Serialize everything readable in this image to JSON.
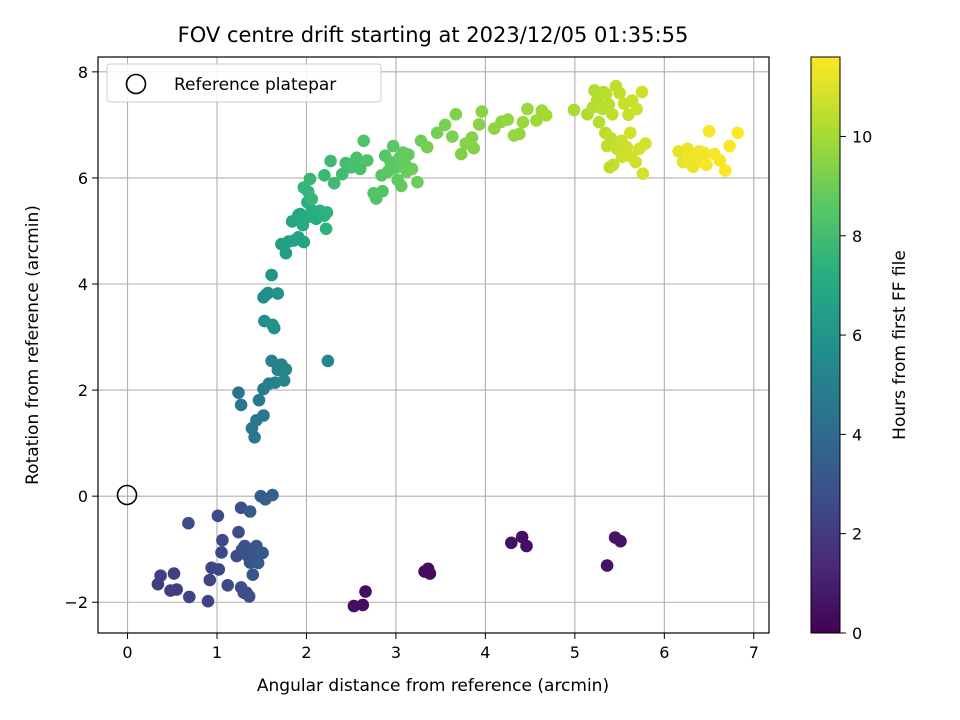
{
  "chart_data": {
    "type": "scatter",
    "title": "FOV centre drift starting at 2023/12/05 01:35:55",
    "xlabel": "Angular distance from reference (arcmin)",
    "ylabel": "Rotation from reference (arcmin)",
    "xlim": [
      -0.33,
      7.17
    ],
    "ylim": [
      -2.58,
      8.28
    ],
    "xticks": [
      0,
      1,
      2,
      3,
      4,
      5,
      6,
      7
    ],
    "yticks": [
      -2,
      0,
      2,
      4,
      6,
      8
    ],
    "grid": true,
    "legend": {
      "position": "top-left",
      "entries": [
        "Reference platepar"
      ]
    },
    "colorbar": {
      "label": "Hours from first FF file",
      "min": 0,
      "max": 11.6,
      "ticks": [
        0,
        2,
        4,
        6,
        8,
        10
      ],
      "colormap": "viridis"
    },
    "reference_point": {
      "x": 0,
      "y": 0
    },
    "points": [
      [
        3.36,
        -1.37,
        0.35
      ],
      [
        3.32,
        -1.42,
        0.35
      ],
      [
        3.38,
        -1.46,
        0.4
      ],
      [
        2.53,
        -2.07,
        0.45
      ],
      [
        2.63,
        -2.05,
        0.45
      ],
      [
        2.66,
        -1.8,
        0.45
      ],
      [
        4.29,
        -0.88,
        0.5
      ],
      [
        4.41,
        -0.77,
        0.5
      ],
      [
        4.46,
        -0.94,
        0.5
      ],
      [
        5.36,
        -1.31,
        0.6
      ],
      [
        5.45,
        -0.78,
        0.6
      ],
      [
        5.51,
        -0.85,
        0.6
      ],
      [
        0.34,
        -1.66,
        2.1
      ],
      [
        0.37,
        -1.5,
        2.1
      ],
      [
        0.48,
        -1.78,
        2.2
      ],
      [
        0.52,
        -1.46,
        2.2
      ],
      [
        0.55,
        -1.76,
        2.2
      ],
      [
        0.69,
        -1.9,
        2.3
      ],
      [
        0.9,
        -1.98,
        2.3
      ],
      [
        0.92,
        -1.58,
        2.4
      ],
      [
        0.94,
        -1.35,
        2.4
      ],
      [
        1.02,
        -1.38,
        2.5
      ],
      [
        1.05,
        -1.06,
        2.5
      ],
      [
        1.06,
        -0.83,
        2.6
      ],
      [
        1.01,
        -0.37,
        2.6
      ],
      [
        0.68,
        -0.51,
        2.7
      ],
      [
        1.12,
        -1.68,
        2.6
      ],
      [
        1.22,
        -1.13,
        2.7
      ],
      [
        1.24,
        -0.68,
        2.8
      ],
      [
        1.27,
        -0.22,
        2.8
      ],
      [
        1.27,
        -1.72,
        2.7
      ],
      [
        1.3,
        -1.82,
        2.7
      ],
      [
        1.33,
        -1.82,
        2.8
      ],
      [
        1.36,
        -1.89,
        2.8
      ],
      [
        1.31,
        -0.94,
        2.9
      ],
      [
        1.28,
        -1.01,
        2.9
      ],
      [
        1.35,
        -1.14,
        3.0
      ],
      [
        1.37,
        -1.25,
        3.0
      ],
      [
        1.39,
        -1.06,
        3.0
      ],
      [
        1.41,
        -1.2,
        3.1
      ],
      [
        1.44,
        -0.94,
        3.1
      ],
      [
        1.46,
        -1.26,
        3.2
      ],
      [
        1.51,
        -1.07,
        3.2
      ],
      [
        1.37,
        -0.29,
        3.3
      ],
      [
        1.49,
        0.0,
        3.4
      ],
      [
        1.54,
        -0.06,
        3.4
      ],
      [
        1.62,
        0.02,
        3.5
      ],
      [
        1.4,
        -1.48,
        3.1
      ],
      [
        1.24,
        1.95,
        4.4
      ],
      [
        1.27,
        1.72,
        4.5
      ],
      [
        1.39,
        1.28,
        4.5
      ],
      [
        1.42,
        1.11,
        4.6
      ],
      [
        1.44,
        1.43,
        4.6
      ],
      [
        1.47,
        1.81,
        4.7
      ],
      [
        1.52,
        1.52,
        4.7
      ],
      [
        1.52,
        2.02,
        4.8
      ],
      [
        1.58,
        2.12,
        4.9
      ],
      [
        1.61,
        2.55,
        5.0
      ],
      [
        1.65,
        2.14,
        5.0
      ],
      [
        1.68,
        2.38,
        5.1
      ],
      [
        1.72,
        2.48,
        5.1
      ],
      [
        1.75,
        2.18,
        5.2
      ],
      [
        1.77,
        2.39,
        5.2
      ],
      [
        2.24,
        2.55,
        5.3
      ],
      [
        1.52,
        3.75,
        5.6
      ],
      [
        1.55,
        3.8,
        5.6
      ],
      [
        1.57,
        3.83,
        5.7
      ],
      [
        1.53,
        3.3,
        5.7
      ],
      [
        1.62,
        3.23,
        5.8
      ],
      [
        1.64,
        3.17,
        5.8
      ],
      [
        1.68,
        3.82,
        5.9
      ],
      [
        1.61,
        4.17,
        6.0
      ],
      [
        1.72,
        4.75,
        6.4
      ],
      [
        1.77,
        4.58,
        6.5
      ],
      [
        1.8,
        4.8,
        6.5
      ],
      [
        1.86,
        4.82,
        6.6
      ],
      [
        1.91,
        4.88,
        6.7
      ],
      [
        1.97,
        4.79,
        6.7
      ],
      [
        1.84,
        5.18,
        6.8
      ],
      [
        1.91,
        5.3,
        6.9
      ],
      [
        1.93,
        5.32,
        6.9
      ],
      [
        1.96,
        5.11,
        7.0
      ],
      [
        1.99,
        5.26,
        7.0
      ],
      [
        2.01,
        5.54,
        7.1
      ],
      [
        2.04,
        5.27,
        7.1
      ],
      [
        2.06,
        5.39,
        7.2
      ],
      [
        2.11,
        5.23,
        7.2
      ],
      [
        2.15,
        5.38,
        7.3
      ],
      [
        2.2,
        5.29,
        7.3
      ],
      [
        2.22,
        5.04,
        7.4
      ],
      [
        2.23,
        5.35,
        7.4
      ],
      [
        1.97,
        5.82,
        7.6
      ],
      [
        2.02,
        5.74,
        7.6
      ],
      [
        2.04,
        5.98,
        7.7
      ],
      [
        2.06,
        5.6,
        7.7
      ],
      [
        2.2,
        6.05,
        7.8
      ],
      [
        2.27,
        6.32,
        7.9
      ],
      [
        2.31,
        5.9,
        7.9
      ],
      [
        2.4,
        6.07,
        8.0
      ],
      [
        2.44,
        6.28,
        8.0
      ],
      [
        2.5,
        6.2,
        8.1
      ],
      [
        2.56,
        6.38,
        8.2
      ],
      [
        2.6,
        6.17,
        8.2
      ],
      [
        2.64,
        6.7,
        8.3
      ],
      [
        2.68,
        6.33,
        8.3
      ],
      [
        2.75,
        5.71,
        8.4
      ],
      [
        2.78,
        5.61,
        8.4
      ],
      [
        2.84,
        6.05,
        8.5
      ],
      [
        2.88,
        6.42,
        8.5
      ],
      [
        2.91,
        6.12,
        8.6
      ],
      [
        2.94,
        6.3,
        8.6
      ],
      [
        2.97,
        6.6,
        8.6
      ],
      [
        3.01,
        6.2,
        8.7
      ],
      [
        3.04,
        6.38,
        8.7
      ],
      [
        3.06,
        5.85,
        8.8
      ],
      [
        3.1,
        6.27,
        8.8
      ],
      [
        3.14,
        6.44,
        8.8
      ],
      [
        3.18,
        6.17,
        8.9
      ],
      [
        3.24,
        5.92,
        8.9
      ],
      [
        2.85,
        5.75,
        8.4
      ],
      [
        2.95,
        6.17,
        8.6
      ],
      [
        3.02,
        5.96,
        8.7
      ],
      [
        3.08,
        6.48,
        8.8
      ],
      [
        3.12,
        6.12,
        8.9
      ],
      [
        3.28,
        6.7,
        9.0
      ],
      [
        3.35,
        6.58,
        9.1
      ],
      [
        3.46,
        6.85,
        9.1
      ],
      [
        3.55,
        7.0,
        9.2
      ],
      [
        3.63,
        6.78,
        9.2
      ],
      [
        3.67,
        7.2,
        9.3
      ],
      [
        3.73,
        6.45,
        9.3
      ],
      [
        3.78,
        6.65,
        9.4
      ],
      [
        3.85,
        6.76,
        9.4
      ],
      [
        3.87,
        6.56,
        9.4
      ],
      [
        3.93,
        7.01,
        9.5
      ],
      [
        3.96,
        7.25,
        9.5
      ],
      [
        4.1,
        6.93,
        9.6
      ],
      [
        4.18,
        7.06,
        9.6
      ],
      [
        4.25,
        7.1,
        9.7
      ],
      [
        4.32,
        6.8,
        9.7
      ],
      [
        4.38,
        6.83,
        9.7
      ],
      [
        4.42,
        7.05,
        9.8
      ],
      [
        4.47,
        7.3,
        9.8
      ],
      [
        4.57,
        7.08,
        9.9
      ],
      [
        4.63,
        7.27,
        9.9
      ],
      [
        4.68,
        7.18,
        10.0
      ],
      [
        4.99,
        7.28,
        10.1
      ],
      [
        5.14,
        7.2,
        10.2
      ],
      [
        5.22,
        7.65,
        10.2
      ],
      [
        5.25,
        7.47,
        10.3
      ],
      [
        5.28,
        7.34,
        10.3
      ],
      [
        5.32,
        7.62,
        10.3
      ],
      [
        5.35,
        7.58,
        10.4
      ],
      [
        5.38,
        7.38,
        10.4
      ],
      [
        5.42,
        7.2,
        10.5
      ],
      [
        5.46,
        7.73,
        10.5
      ],
      [
        5.5,
        7.6,
        10.5
      ],
      [
        5.55,
        7.4,
        10.6
      ],
      [
        5.6,
        7.19,
        10.6
      ],
      [
        5.64,
        7.46,
        10.7
      ],
      [
        5.69,
        7.3,
        10.7
      ],
      [
        5.75,
        7.62,
        10.8
      ],
      [
        5.2,
        7.33,
        10.3
      ],
      [
        5.27,
        7.05,
        10.3
      ],
      [
        5.31,
        7.3,
        10.4
      ],
      [
        5.34,
        6.85,
        10.4
      ],
      [
        5.36,
        6.6,
        10.5
      ],
      [
        5.4,
        6.75,
        10.5
      ],
      [
        5.43,
        6.25,
        10.6
      ],
      [
        5.47,
        6.55,
        10.6
      ],
      [
        5.53,
        6.4,
        10.7
      ],
      [
        5.58,
        6.58,
        10.7
      ],
      [
        5.63,
        6.4,
        10.8
      ],
      [
        5.68,
        6.3,
        10.8
      ],
      [
        5.72,
        6.55,
        10.9
      ],
      [
        5.76,
        6.08,
        10.9
      ],
      [
        5.79,
        6.65,
        10.9
      ],
      [
        5.52,
        6.7,
        10.7
      ],
      [
        5.62,
        6.85,
        10.8
      ],
      [
        5.39,
        6.2,
        10.5
      ],
      [
        6.16,
        6.5,
        11.2
      ],
      [
        6.21,
        6.3,
        11.2
      ],
      [
        6.26,
        6.55,
        11.3
      ],
      [
        6.29,
        6.4,
        11.3
      ],
      [
        6.32,
        6.21,
        11.3
      ],
      [
        6.35,
        6.28,
        11.4
      ],
      [
        6.39,
        6.5,
        11.4
      ],
      [
        6.43,
        6.35,
        11.4
      ],
      [
        6.47,
        6.25,
        11.5
      ],
      [
        6.5,
        6.88,
        11.5
      ],
      [
        6.56,
        6.45,
        11.5
      ],
      [
        6.62,
        6.33,
        11.5
      ],
      [
        6.68,
        6.14,
        11.6
      ],
      [
        6.73,
        6.6,
        11.6
      ],
      [
        6.82,
        6.85,
        11.6
      ],
      [
        6.27,
        6.35,
        11.3
      ],
      [
        6.34,
        6.45,
        11.4
      ],
      [
        6.44,
        6.48,
        11.4
      ]
    ]
  }
}
